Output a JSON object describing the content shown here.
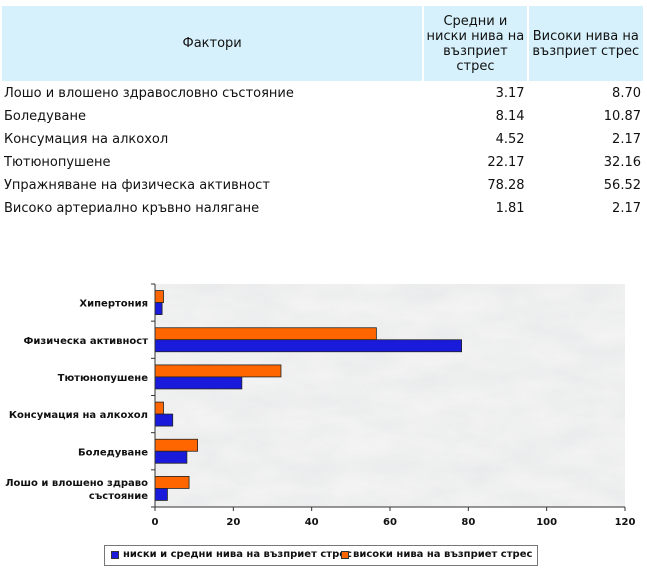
{
  "table": {
    "headers": [
      "Фактори",
      "Средни и ниски нива на възприет стрес",
      "Високи нива на възприет стрес"
    ],
    "rows": [
      {
        "factor": "Лошо и влошено здравословно състояние",
        "low": "3.17",
        "high": "8.70"
      },
      {
        "factor": "Боледуване",
        "low": "8.14",
        "high": "10.87"
      },
      {
        "factor": "Консумация на алкохол",
        "low": "4.52",
        "high": "2.17"
      },
      {
        "factor": "Тютюнопушене",
        "low": "22.17",
        "high": "32.16"
      },
      {
        "factor": "Упражняване на физическа активност",
        "low": "78.28",
        "high": "56.52"
      },
      {
        "factor": "Високо артериално кръвно налягане",
        "low": "1.81",
        "high": "2.17"
      }
    ]
  },
  "chart_data": {
    "type": "bar",
    "orientation": "horizontal",
    "categories": [
      "Хипертония",
      "Физическа активност",
      "Тютюнопушене",
      "Консумация на алкохол",
      "Боледуване",
      "Лошо и влошено здраво състояние"
    ],
    "series": [
      {
        "name": "ниски и средни нива на възприет стрес",
        "color": "#1a1adb",
        "values": [
          1.81,
          78.28,
          22.17,
          4.52,
          8.14,
          3.17
        ]
      },
      {
        "name": "високи нива на възприет стрес",
        "color": "#ff6600",
        "values": [
          2.17,
          56.52,
          32.16,
          2.17,
          10.87,
          8.7
        ]
      }
    ],
    "xlim": [
      0,
      120
    ],
    "xticks": [
      0,
      20,
      40,
      60,
      80,
      100,
      120
    ],
    "legend": "bottom",
    "grid": false
  }
}
